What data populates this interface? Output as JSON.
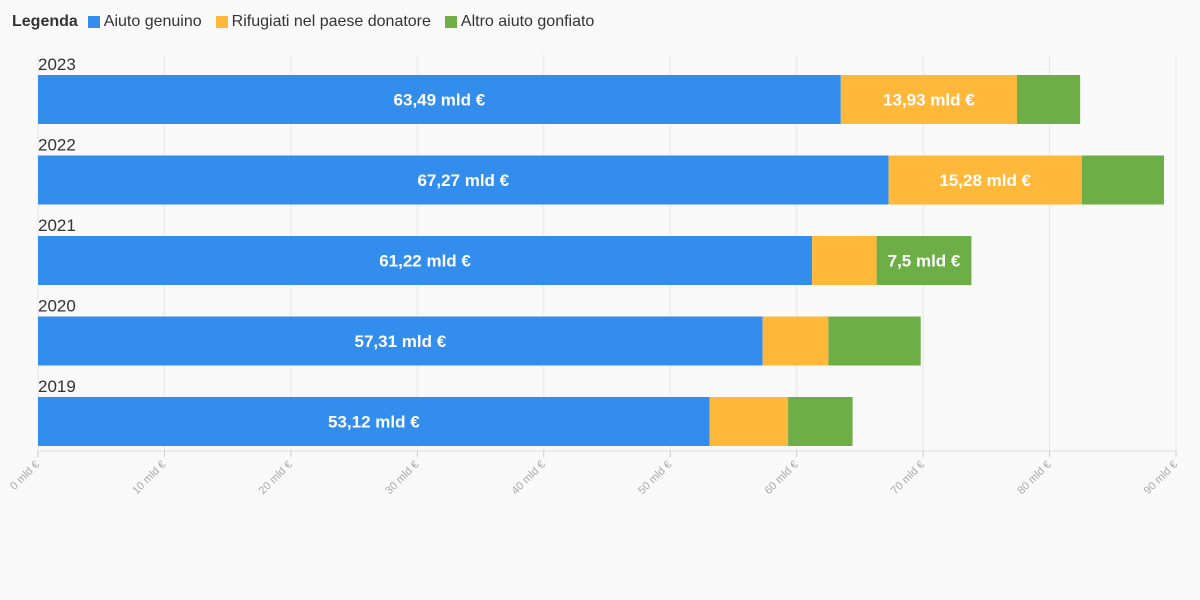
{
  "legend": {
    "title": "Legenda",
    "items": [
      {
        "label": "Aiuto genuino",
        "color": "#338ded"
      },
      {
        "label": "Rifugiati nel paese donatore",
        "color": "#ffb83a"
      },
      {
        "label": "Altro aiuto gonfiato",
        "color": "#6eae47"
      }
    ]
  },
  "chart_data": {
    "type": "bar",
    "orientation": "horizontal",
    "stacked": true,
    "categories": [
      "2023",
      "2022",
      "2021",
      "2020",
      "2019"
    ],
    "series": [
      {
        "name": "Aiuto genuino",
        "color": "#338ded",
        "values": [
          63.49,
          67.27,
          61.22,
          57.31,
          53.12
        ],
        "labels": [
          "63,49 mld €",
          "67,27 mld €",
          "61,22 mld €",
          "57,31 mld €",
          "53,12 mld €"
        ]
      },
      {
        "name": "Rifugiati nel paese donatore",
        "color": "#ffb83a",
        "values": [
          13.93,
          15.28,
          5.1,
          5.2,
          6.2
        ],
        "labels": [
          "13,93 mld €",
          "15,28 mld €",
          "",
          "",
          ""
        ]
      },
      {
        "name": "Altro aiuto gonfiato",
        "color": "#6eae47",
        "values": [
          5.0,
          6.5,
          7.5,
          7.3,
          5.1
        ],
        "labels": [
          "",
          "",
          "7,5 mld €",
          "",
          ""
        ]
      }
    ],
    "xlim": [
      0,
      90
    ],
    "x_ticks": [
      0,
      10,
      20,
      30,
      40,
      50,
      60,
      70,
      80,
      90
    ],
    "x_tick_labels": [
      "0 mld €",
      "10 mld €",
      "20 mld €",
      "30 mld €",
      "40 mld €",
      "50 mld €",
      "60 mld €",
      "70 mld €",
      "80 mld €",
      "90 mld €"
    ],
    "grid": true,
    "legend_position": "top-left"
  }
}
